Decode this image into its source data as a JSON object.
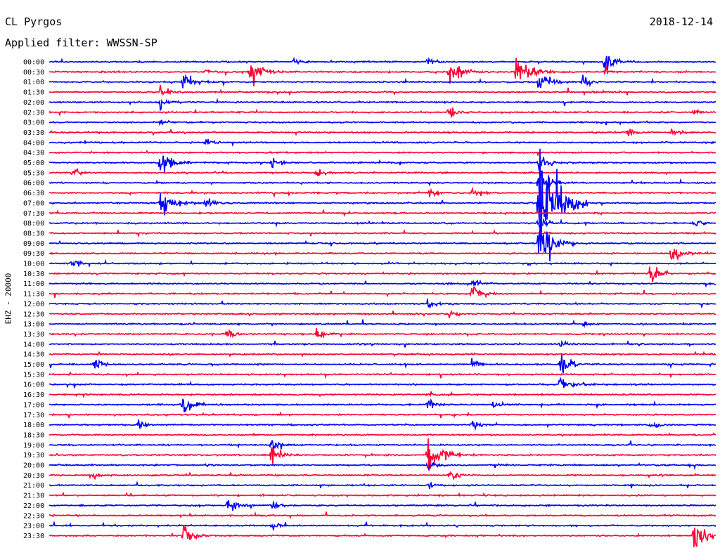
{
  "header": {
    "station": "CL Pyrgos",
    "filter_label": "Applied filter:",
    "filter_value": "WWSSN-SP",
    "date": "2018-12-14"
  },
  "axis": {
    "channel_label": "EHZ - 20000"
  },
  "colors": {
    "trace_blue": "#0000ff",
    "trace_red": "#ff0033",
    "background": "#ffffff",
    "text": "#000000"
  },
  "chart_data": {
    "type": "helicorder",
    "title": "CL Pyrgos",
    "subtitle": "Applied filter: WWSSN-SP",
    "date": "2018-12-14",
    "ylabel": "EHZ - 20000",
    "trace_colors_alternate": [
      "blue",
      "red"
    ],
    "rows": [
      "00:00",
      "00:30",
      "01:00",
      "01:30",
      "02:00",
      "02:30",
      "03:00",
      "03:30",
      "04:00",
      "04:30",
      "05:00",
      "05:30",
      "06:00",
      "06:30",
      "07:00",
      "07:30",
      "08:00",
      "08:30",
      "09:00",
      "09:30",
      "10:00",
      "10:30",
      "11:00",
      "11:30",
      "12:00",
      "12:30",
      "13:00",
      "13:30",
      "14:00",
      "14:30",
      "15:00",
      "15:30",
      "16:00",
      "16:30",
      "17:00",
      "17:30",
      "18:00",
      "18:30",
      "19:00",
      "19:30",
      "20:00",
      "20:30",
      "21:00",
      "21:30",
      "22:00",
      "22:30",
      "23:00",
      "23:30"
    ],
    "events": [
      {
        "row": "00:00",
        "minute": 11,
        "amp": 12
      },
      {
        "row": "00:00",
        "minute": 17,
        "amp": 16
      },
      {
        "row": "00:00",
        "minute": 25,
        "amp": 40
      },
      {
        "row": "00:30",
        "minute": 7,
        "amp": 14
      },
      {
        "row": "00:30",
        "minute": 9,
        "amp": 58
      },
      {
        "row": "00:30",
        "minute": 21,
        "amp": 70
      },
      {
        "row": "00:30",
        "minute": 25,
        "amp": 14
      },
      {
        "row": "01:00",
        "minute": 6,
        "amp": 40
      },
      {
        "row": "01:00",
        "minute": 24,
        "amp": 22
      },
      {
        "row": "01:30",
        "minute": 5,
        "amp": 20
      },
      {
        "row": "02:00",
        "minute": 5,
        "amp": 25
      },
      {
        "row": "03:00",
        "minute": 5,
        "amp": 15
      },
      {
        "row": "03:30",
        "minute": 28,
        "amp": 18
      },
      {
        "row": "04:00",
        "minute": 7,
        "amp": 14
      },
      {
        "row": "05:00",
        "minute": 5,
        "amp": 45
      },
      {
        "row": "05:00",
        "minute": 10,
        "amp": 22
      },
      {
        "row": "05:30",
        "minute": 1,
        "amp": 20
      },
      {
        "row": "05:30",
        "minute": 12,
        "amp": 18
      },
      {
        "row": "06:30",
        "minute": 17,
        "amp": 20
      },
      {
        "row": "06:30",
        "minute": 19,
        "amp": 25
      },
      {
        "row": "07:00",
        "minute": 5,
        "amp": 60
      },
      {
        "row": "07:00",
        "minute": 7,
        "amp": 22
      },
      {
        "row": "07:00",
        "minute": 22,
        "amp": 170
      },
      {
        "row": "09:00",
        "minute": 22,
        "amp": 90
      },
      {
        "row": "09:30",
        "minute": 28,
        "amp": 40
      },
      {
        "row": "10:00",
        "minute": 1,
        "amp": 20
      },
      {
        "row": "10:30",
        "minute": 27,
        "amp": 40
      },
      {
        "row": "12:30",
        "minute": 18,
        "amp": 12
      },
      {
        "row": "13:30",
        "minute": 12,
        "amp": 20
      },
      {
        "row": "15:00",
        "minute": 2,
        "amp": 25
      },
      {
        "row": "15:00",
        "minute": 19,
        "amp": 20
      },
      {
        "row": "15:00",
        "minute": 23,
        "amp": 40
      },
      {
        "row": "16:30",
        "minute": 17,
        "amp": 18
      },
      {
        "row": "17:00",
        "minute": 6,
        "amp": 40
      },
      {
        "row": "17:00",
        "minute": 17,
        "amp": 20
      },
      {
        "row": "17:00",
        "minute": 20,
        "amp": 25
      },
      {
        "row": "18:00",
        "minute": 4,
        "amp": 25
      },
      {
        "row": "18:00",
        "minute": 19,
        "amp": 22
      },
      {
        "row": "18:00",
        "minute": 27,
        "amp": 20
      },
      {
        "row": "19:00",
        "minute": 10,
        "amp": 30
      },
      {
        "row": "19:30",
        "minute": 10,
        "amp": 35
      },
      {
        "row": "19:30",
        "minute": 17,
        "amp": 70
      },
      {
        "row": "20:00",
        "minute": 17,
        "amp": 20
      },
      {
        "row": "20:30",
        "minute": 2,
        "amp": 12
      },
      {
        "row": "20:30",
        "minute": 18,
        "amp": 25
      },
      {
        "row": "21:00",
        "minute": 17,
        "amp": 12
      },
      {
        "row": "22:00",
        "minute": 8,
        "amp": 35
      },
      {
        "row": "22:00",
        "minute": 10,
        "amp": 20
      },
      {
        "row": "23:00",
        "minute": 10,
        "amp": 18
      },
      {
        "row": "23:30",
        "minute": 6,
        "amp": 50
      },
      {
        "row": "23:30",
        "minute": 29,
        "amp": 70
      },
      {
        "row": "11:00",
        "minute": 19,
        "amp": 18
      },
      {
        "row": "11:30",
        "minute": 19,
        "amp": 35
      },
      {
        "row": "12:00",
        "minute": 17,
        "amp": 18
      },
      {
        "row": "13:30",
        "minute": 8,
        "amp": 18
      },
      {
        "row": "08:00",
        "minute": 22,
        "amp": 30
      },
      {
        "row": "08:00",
        "minute": 29,
        "amp": 20
      },
      {
        "row": "06:00",
        "minute": 22,
        "amp": 60
      },
      {
        "row": "05:00",
        "minute": 22,
        "amp": 40
      },
      {
        "row": "02:30",
        "minute": 18,
        "amp": 22
      },
      {
        "row": "02:30",
        "minute": 29,
        "amp": 15
      },
      {
        "row": "03:30",
        "minute": 26,
        "amp": 20
      },
      {
        "row": "00:30",
        "minute": 18,
        "amp": 60
      },
      {
        "row": "01:00",
        "minute": 22,
        "amp": 45
      },
      {
        "row": "14:00",
        "minute": 23,
        "amp": 14
      },
      {
        "row": "16:00",
        "minute": 23,
        "amp": 40
      },
      {
        "row": "13:00",
        "minute": 24,
        "amp": 18
      }
    ]
  }
}
